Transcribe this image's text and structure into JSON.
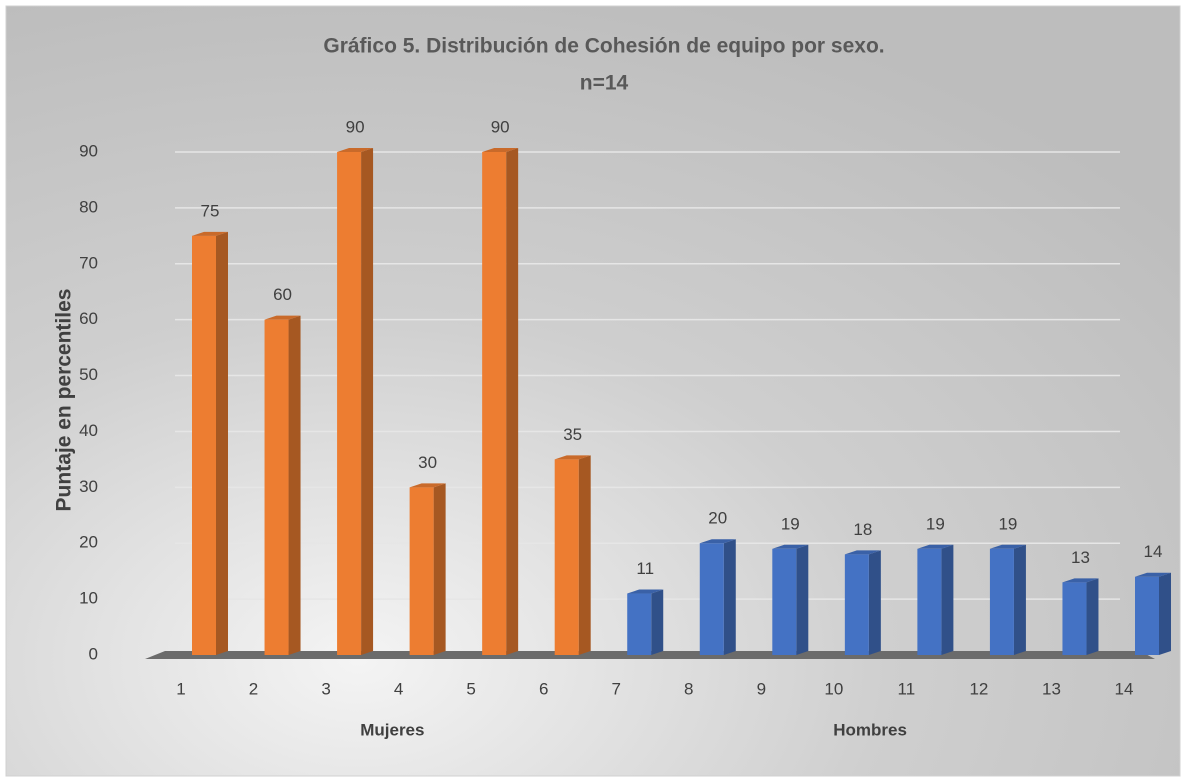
{
  "chart_data": {
    "type": "bar",
    "title": "Gráfico 5. Distribución de Cohesión de equipo por sexo.",
    "subtitle": "n=14",
    "y_label": "Puntaje en percentiles",
    "categories": [
      "1",
      "2",
      "3",
      "4",
      "5",
      "6",
      "7",
      "8",
      "9",
      "10",
      "11",
      "12",
      "13",
      "14"
    ],
    "series": [
      {
        "name": "Mujeres",
        "color": "#ed7d31",
        "values": [
          75,
          60,
          90,
          30,
          90,
          35,
          null,
          null,
          null,
          null,
          null,
          null,
          null,
          null
        ]
      },
      {
        "name": "Hombres",
        "color": "#4472c4",
        "values": [
          null,
          null,
          null,
          null,
          null,
          null,
          11,
          20,
          19,
          18,
          19,
          19,
          13,
          14
        ]
      }
    ],
    "ylim": [
      0,
      90
    ],
    "yticks": [
      0,
      10,
      20,
      30,
      40,
      50,
      60,
      70,
      80,
      90
    ],
    "grid": true
  }
}
